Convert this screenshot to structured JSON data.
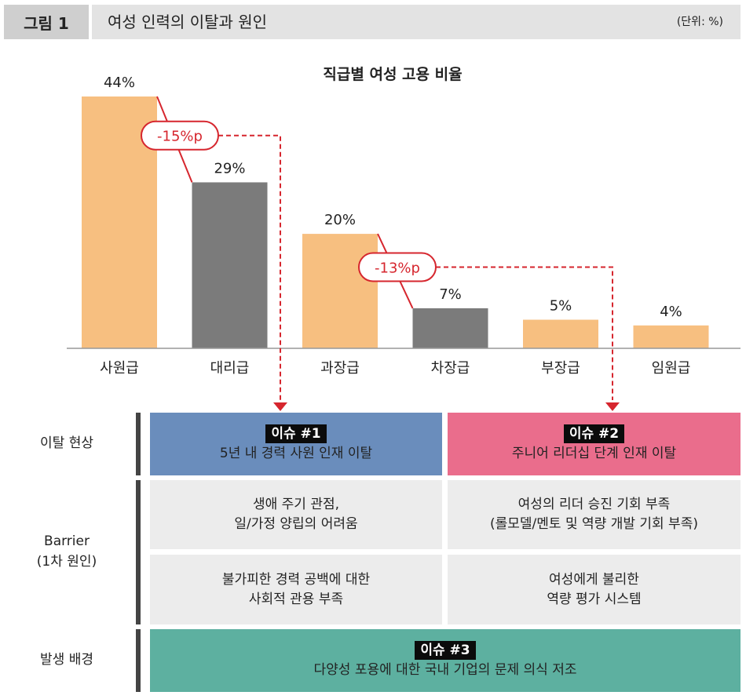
{
  "header": {
    "fig_label": "그림 1",
    "title": "여성 인력의 이탈과 원인",
    "unit": "(단위: %)"
  },
  "chart_data": {
    "type": "bar",
    "title": "직급별 여성 고용 비율",
    "categories": [
      "사원급",
      "대리급",
      "과장급",
      "차장급",
      "부장급",
      "임원급"
    ],
    "values": [
      44,
      29,
      20,
      7,
      5,
      4
    ],
    "value_labels": [
      "44%",
      "29%",
      "20%",
      "7%",
      "5%",
      "4%"
    ],
    "colors": [
      "#f7bf80",
      "#7b7b7b",
      "#f7bf80",
      "#7b7b7b",
      "#f7bf80",
      "#f7bf80"
    ],
    "accent_color": "#d6262e",
    "ylim": [
      0,
      44
    ],
    "annotations": [
      {
        "label": "-15%p",
        "from_index": 0,
        "to_index": 1,
        "links_to": "issue1"
      },
      {
        "label": "-13%p",
        "from_index": 2,
        "to_index": 3,
        "links_to": "issue2"
      }
    ]
  },
  "table": {
    "rows": {
      "departure": "이탈 현상",
      "barrier": [
        "Barrier",
        "(1차 원인)"
      ],
      "background": "발생 배경"
    },
    "issue1": {
      "tag": "이슈 #1",
      "text": "5년 내 경력 사원 인재 이탈",
      "color": "#6a8dbc"
    },
    "issue2": {
      "tag": "이슈 #2",
      "text": "주니어 리더십 단계 인재 이탈",
      "color": "#ea6d8c"
    },
    "barrier_cells": [
      [
        "생애 주기 관점,",
        "일/가정 양립의 어려움"
      ],
      [
        "여성의 리더 승진 기회 부족",
        "(롤모델/멘토 및 역량 개발 기회 부족)"
      ],
      [
        "불가피한 경력 공백에 대한",
        "사회적 관용 부족"
      ],
      [
        "여성에게 불리한",
        "역량 평가 시스템"
      ]
    ],
    "issue3": {
      "tag": "이슈 #3",
      "text": "다양성 포용에 대한 국내 기업의 문제 의식 저조",
      "color": "#5db0a0"
    }
  }
}
